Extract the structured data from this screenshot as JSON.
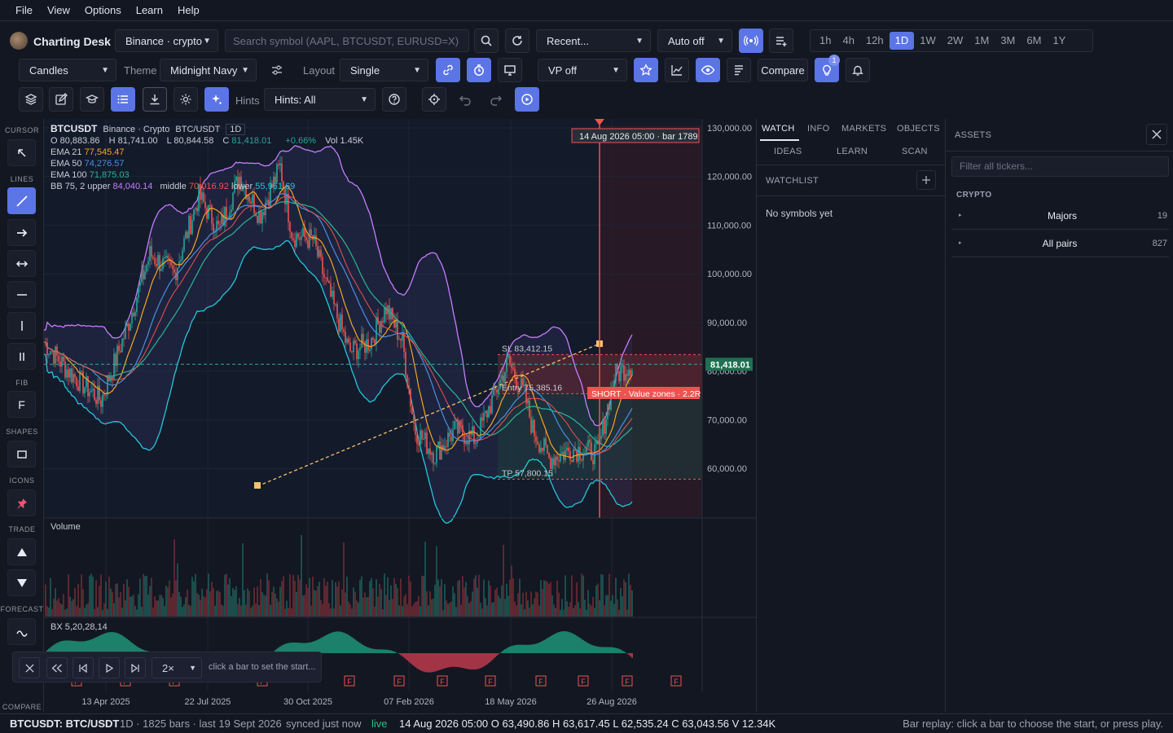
{
  "menu": [
    "File",
    "View",
    "Options",
    "Learn",
    "Help"
  ],
  "app": {
    "name": "Charting Desk"
  },
  "toolbar1": {
    "exchange": "Binance · crypto",
    "search_placeholder": "Search symbol (AAPL, BTCUSDT, EURUSD=X)",
    "recent": "Recent...",
    "auto": "Auto off",
    "timeframes": [
      "1h",
      "4h",
      "12h",
      "1D",
      "1W",
      "2W",
      "1M",
      "3M",
      "6M",
      "1Y"
    ],
    "active_timeframe": "1D"
  },
  "toolbar2": {
    "chart_type": "Candles",
    "theme_label": "Theme",
    "theme": "Midnight Navy",
    "layout_label": "Layout",
    "layout": "Single",
    "vp": "VP off",
    "compare": "Compare",
    "badge": "1"
  },
  "toolbar3": {
    "hints_label": "Hints",
    "hints": "Hints: All"
  },
  "tools": {
    "cursor": "CURSOR",
    "lines": "LINES",
    "fib": "FIB",
    "fib_glyph": "F",
    "shapes": "SHAPES",
    "icons": "ICONS",
    "trade": "TRADE",
    "forecast": "FORECAST",
    "compare": "COMPARE"
  },
  "legend": {
    "symbol": "BTCUSDT",
    "source": "Binance · Crypto",
    "pair": "BTC/USDT",
    "interval": "1D",
    "o": "O 80,883.86",
    "h": "H 81,741.00",
    "l": "L 80,844.58",
    "c_label": "C",
    "c": "81,418.01",
    "chg": "+0.66%",
    "vol": "Vol 1.45K",
    "ema21_label": "EMA 21",
    "ema21": "77,545.47",
    "ema50_label": "EMA 50",
    "ema50": "74,276.57",
    "ema100_label": "EMA 100",
    "ema100": "71,875.03",
    "bb_label": "BB 75, 2",
    "bb_upper_label": "upper",
    "bb_upper": "84,040.14",
    "bb_middle_label": "middle",
    "bb_middle": "70,016.92",
    "bb_lower_label": "lower",
    "bb_lower": "55,961.69"
  },
  "chart": {
    "crosshair_label": "14 Aug 2026 05:00 · bar 1789",
    "price_ticks": [
      "130,000.00",
      "120,000.00",
      "110,000.00",
      "100,000.00",
      "90,000.00",
      "80,000.00",
      "70,000.00",
      "60,000.00"
    ],
    "last_price": "81,418.01",
    "sl": "SL 83,412.15",
    "entry": "Entry 75,385.16",
    "tp": "TP 57,800.15",
    "trade_label": "SHORT · Value zones · 2.2R",
    "volume_label": "Volume",
    "osc_label": "BX 5,20,28,14",
    "fmarker": "F",
    "date_ticks": [
      "13 Apr 2025",
      "22 Jul 2025",
      "30 Oct 2025",
      "07 Feb 2026",
      "18 May 2026",
      "26 Aug 2026"
    ],
    "colors": {
      "up": "#26a69a",
      "down": "#ef5350",
      "ema21": "#f5a623",
      "ema50": "#4a90e2",
      "ema100": "#2bb596",
      "bb": "#c77dff",
      "bb_lower": "#26c6da"
    }
  },
  "chart_data": {
    "type": "candlestick",
    "symbol": "BTCUSDT",
    "x_ticks": [
      "13 Apr 2025",
      "22 Jul 2025",
      "30 Oct 2025",
      "07 Feb 2026",
      "18 May 2026",
      "26 Aug 2026"
    ],
    "ylim": [
      50000,
      130000
    ],
    "close_path": [
      [
        "13 Apr 2025",
        85000
      ],
      [
        "22 Jul 2025",
        118000
      ],
      [
        "30 Oct 2025",
        110000
      ],
      [
        "07 Feb 2026",
        68000
      ],
      [
        "18 May 2026",
        64000
      ],
      [
        "14 Aug 2026",
        63043.56
      ],
      [
        "19 Sept 2026",
        81418.01
      ]
    ],
    "last": {
      "open": 80883.86,
      "high": 81741.0,
      "low": 80844.58,
      "close": 81418.01,
      "change_pct": 0.66
    }
  },
  "right_panel": {
    "tabs": [
      "WATCH",
      "INFO",
      "MARKETS",
      "OBJECTS"
    ],
    "tabs2": [
      "IDEAS",
      "LEARN",
      "SCAN"
    ],
    "watchlist_label": "WATCHLIST",
    "empty": "No symbols yet"
  },
  "assets": {
    "title": "ASSETS",
    "filter_placeholder": "Filter all tickers...",
    "section": "CRYPTO",
    "groups": [
      {
        "name": "Majors",
        "count": "19"
      },
      {
        "name": "All pairs",
        "count": "827"
      }
    ]
  },
  "replay": {
    "speed": "2×",
    "hint": "click a bar to set the start..."
  },
  "status": {
    "symbol": "BTCUSDT: BTC/USDT",
    "info": "1D · 1825 bars · last 19 Sept 2026",
    "synced": "synced just now",
    "live": "live",
    "ohlc": "14 Aug 2026 05:00 O 63,490.86 H 63,617.45 L 62,535.24 C 63,043.56 V 12.34K",
    "hint": "Bar replay: click a bar to choose the start, or press play."
  }
}
